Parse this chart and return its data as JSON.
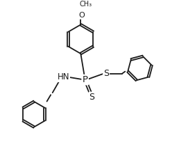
{
  "bg_color": "#ffffff",
  "line_color": "#1a1a1a",
  "line_width": 1.3,
  "font_size": 8.5,
  "xlim": [
    -4.0,
    4.5
  ],
  "ylim": [
    -4.2,
    3.8
  ]
}
